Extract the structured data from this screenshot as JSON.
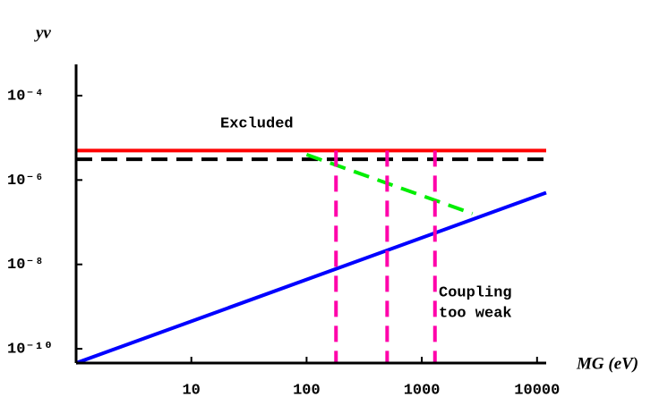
{
  "chart_data": {
    "type": "line",
    "x_label": "MG (eV)",
    "y_label": "yν",
    "xscale": "log",
    "yscale": "log",
    "xlim": [
      1,
      12000
    ],
    "ylim": [
      4.6e-11,
      0.00055
    ],
    "xticks": [
      10,
      100,
      1000,
      10000
    ],
    "yticks": [
      {
        "value": 0.0001,
        "label": "10⁻⁴"
      },
      {
        "value": 1e-06,
        "label": "10⁻⁶"
      },
      {
        "value": 1e-08,
        "label": "10⁻⁸"
      },
      {
        "value": 1e-10,
        "label": "10⁻¹⁰"
      }
    ],
    "series": [
      {
        "color": "#ff0000",
        "dash": false,
        "x": [
          1,
          12000
        ],
        "values": [
          5e-06,
          5e-06
        ]
      },
      {
        "color": "#000000",
        "dash": true,
        "x": [
          1,
          12000
        ],
        "values": [
          3.1e-06,
          3.1e-06
        ]
      },
      {
        "color": "#00ee00",
        "dash": true,
        "x": [
          100,
          2750
        ],
        "values": [
          4e-06,
          1.6e-07
        ]
      },
      {
        "color": "#0000ff",
        "dash": false,
        "x": [
          1,
          12000
        ],
        "values": [
          4.6e-11,
          5e-07
        ]
      },
      {
        "color": "#ff00aa",
        "dash": true,
        "x": [
          180,
          180
        ],
        "values": [
          5e-06,
          4.6e-11
        ]
      },
      {
        "color": "#ff00aa",
        "dash": true,
        "x": [
          500,
          500
        ],
        "values": [
          5e-06,
          4.6e-11
        ]
      },
      {
        "color": "#ff00aa",
        "dash": true,
        "x": [
          1300,
          1300
        ],
        "values": [
          5e-06,
          4.6e-11
        ]
      }
    ],
    "annotations": [
      "Excluded",
      "Coupling",
      "too weak"
    ]
  }
}
